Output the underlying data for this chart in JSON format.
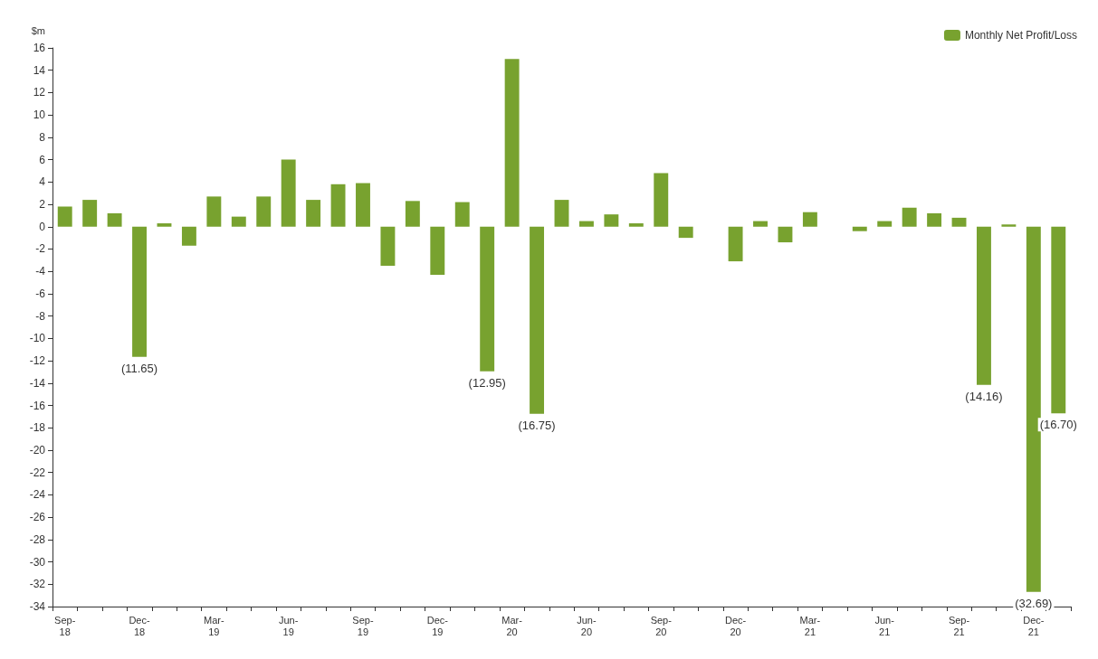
{
  "chart_data": {
    "type": "bar",
    "ylabel": "$m",
    "categories": [
      "Sep-18",
      null,
      null,
      "Dec-18",
      null,
      null,
      "Mar-19",
      null,
      null,
      "Jun-19",
      null,
      null,
      "Sep-19",
      null,
      null,
      "Dec-19",
      null,
      null,
      "Mar-20",
      null,
      null,
      "Jun-20",
      null,
      null,
      "Sep-20",
      null,
      null,
      "Dec-20",
      null,
      null,
      "Mar-21",
      null,
      null,
      "Jun-21",
      null,
      null,
      "Sep-21",
      null,
      null,
      "Dec-21",
      null
    ],
    "series": [
      {
        "name": "Monthly Net Profit/Loss",
        "color": "#78a22f",
        "values": [
          1.8,
          2.4,
          1.2,
          -11.65,
          0.3,
          -1.7,
          2.7,
          0.9,
          2.7,
          6.0,
          2.4,
          3.8,
          3.9,
          -3.5,
          2.3,
          -4.3,
          2.2,
          -12.95,
          15.0,
          -16.75,
          2.4,
          0.5,
          1.1,
          0.3,
          4.8,
          -1.0,
          0,
          -3.1,
          0.5,
          -1.4,
          1.3,
          0,
          -0.4,
          0.5,
          1.7,
          1.2,
          0.8,
          -14.16,
          0.2,
          -32.69,
          -16.7
        ],
        "value_labels": [
          null,
          null,
          null,
          "(11.65)",
          null,
          null,
          null,
          null,
          null,
          null,
          null,
          null,
          null,
          null,
          null,
          null,
          null,
          "(12.95)",
          null,
          "(16.75)",
          null,
          null,
          null,
          null,
          null,
          null,
          null,
          null,
          null,
          null,
          null,
          null,
          null,
          null,
          null,
          null,
          null,
          "(14.16)",
          null,
          "(32.69)",
          "(16.70)"
        ]
      }
    ],
    "ylim": [
      -34,
      16
    ],
    "yticks": [
      -34,
      -32,
      -30,
      -28,
      -26,
      -24,
      -22,
      -20,
      -18,
      -16,
      -14,
      -12,
      -10,
      -8,
      -6,
      -4,
      -2,
      0,
      2,
      4,
      6,
      8,
      10,
      12,
      14,
      16
    ],
    "grid": false,
    "legend": "top right"
  }
}
